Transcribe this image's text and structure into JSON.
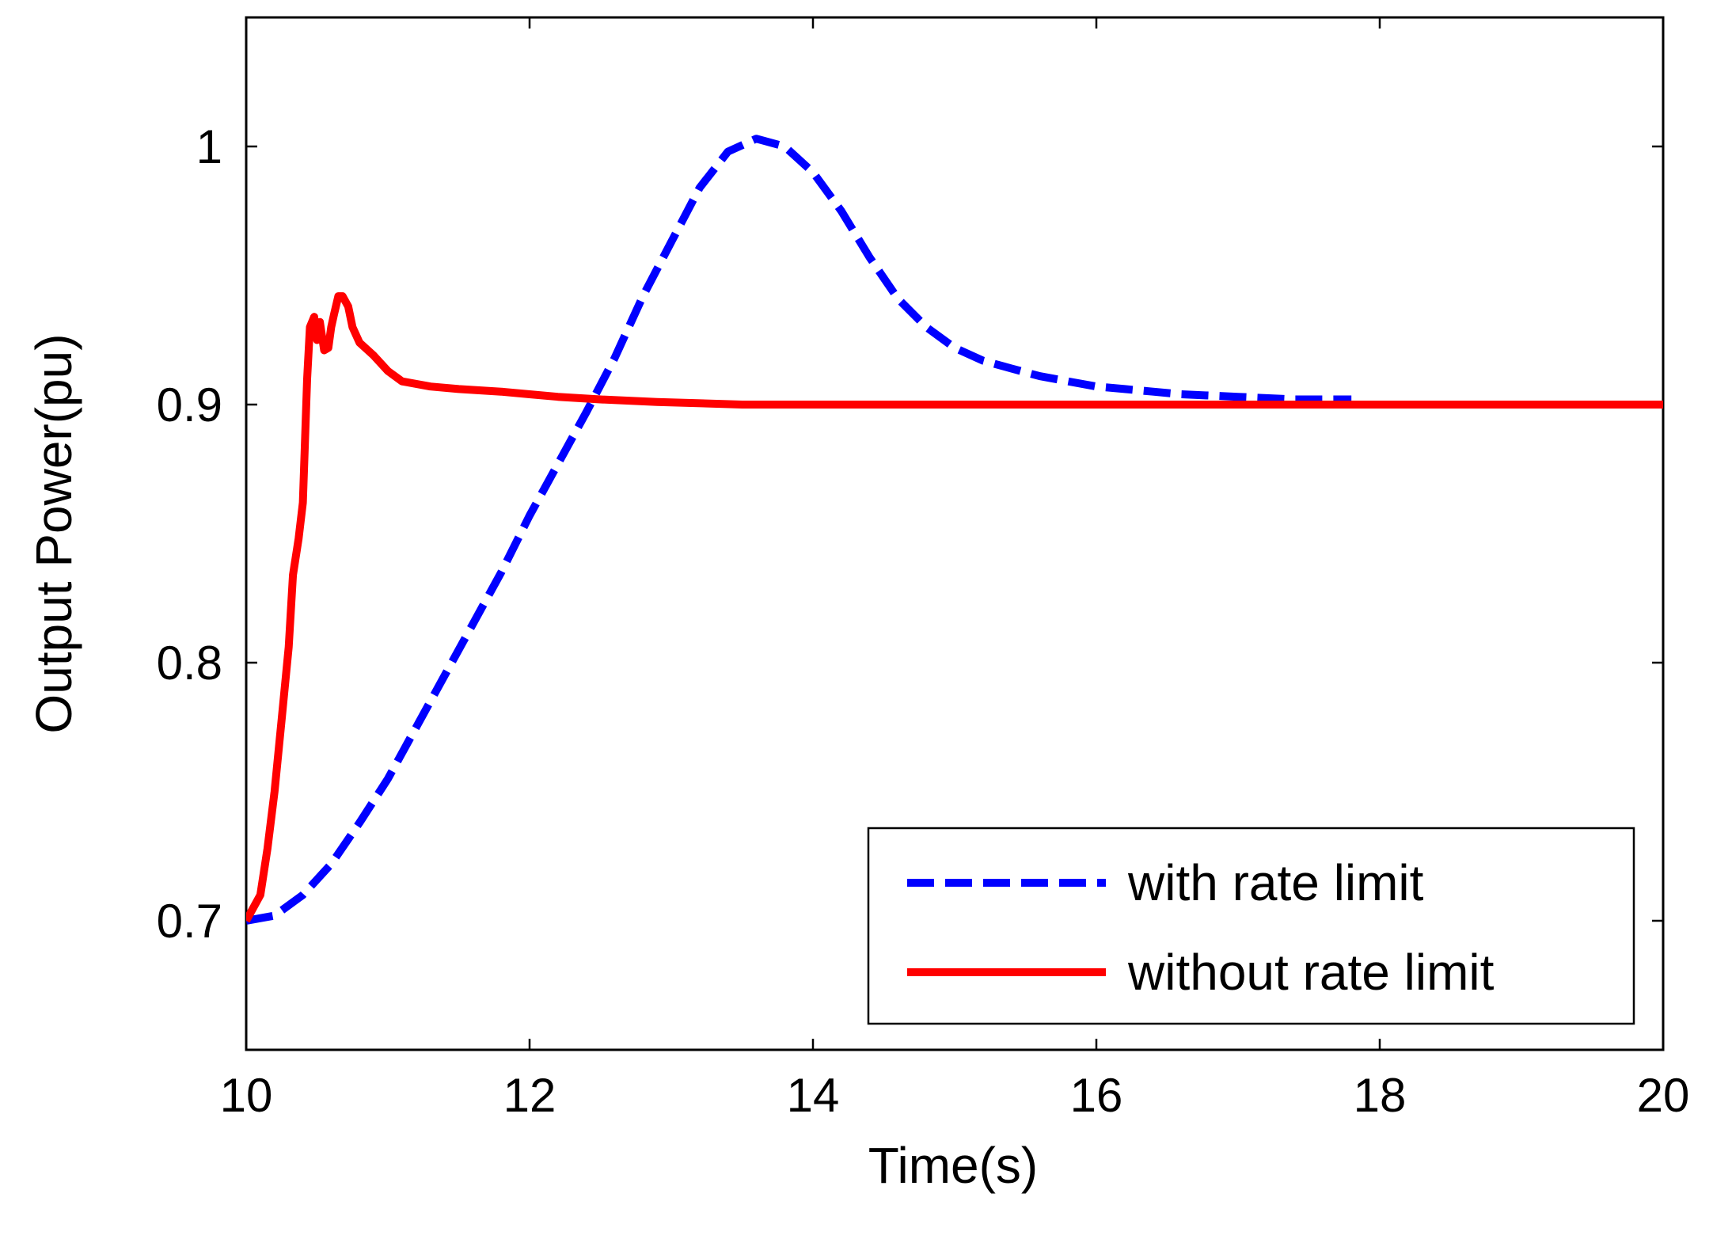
{
  "chart_data": {
    "type": "line",
    "title": "",
    "xlabel": "Time(s)",
    "ylabel": "Output Power(pu)",
    "xlim": [
      10,
      20
    ],
    "ylim": [
      0.65,
      1.05
    ],
    "xticks": [
      10,
      12,
      14,
      16,
      18,
      20
    ],
    "xtick_labels": [
      "10",
      "12",
      "14",
      "16",
      "18",
      "20"
    ],
    "yticks": [
      0.7,
      0.8,
      0.9,
      1.0
    ],
    "ytick_labels": [
      "0.7",
      "0.8",
      "0.9",
      "1"
    ],
    "grid": false,
    "legend_position": "bottom-right",
    "series": [
      {
        "name": "with rate limit",
        "color": "#0000ff",
        "style": "dashed",
        "x": [
          10.0,
          10.2,
          10.4,
          10.6,
          10.8,
          11.0,
          11.2,
          11.4,
          11.6,
          11.8,
          12.0,
          12.2,
          12.4,
          12.6,
          12.8,
          13.0,
          13.2,
          13.4,
          13.6,
          13.8,
          14.0,
          14.2,
          14.4,
          14.6,
          14.8,
          15.0,
          15.2,
          15.4,
          15.6,
          15.8,
          16.0,
          16.2,
          16.4,
          16.6,
          17.0,
          17.4,
          17.8
        ],
        "y": [
          0.7,
          0.702,
          0.71,
          0.722,
          0.738,
          0.755,
          0.775,
          0.795,
          0.815,
          0.835,
          0.857,
          0.877,
          0.897,
          0.918,
          0.942,
          0.963,
          0.984,
          0.998,
          1.003,
          1.0,
          0.99,
          0.975,
          0.957,
          0.941,
          0.93,
          0.922,
          0.917,
          0.914,
          0.911,
          0.909,
          0.907,
          0.906,
          0.905,
          0.904,
          0.903,
          0.902,
          0.902
        ]
      },
      {
        "name": "without rate limit",
        "color": "#ff0000",
        "style": "solid",
        "x": [
          10.0,
          10.1,
          10.15,
          10.2,
          10.25,
          10.3,
          10.33,
          10.37,
          10.4,
          10.43,
          10.45,
          10.48,
          10.5,
          10.52,
          10.55,
          10.58,
          10.6,
          10.62,
          10.65,
          10.68,
          10.72,
          10.75,
          10.8,
          10.9,
          11.0,
          11.1,
          11.3,
          11.5,
          11.8,
          12.0,
          12.2,
          12.5,
          12.9,
          13.5,
          14.5,
          16.0,
          18.0,
          20.0
        ],
        "y": [
          0.7,
          0.71,
          0.728,
          0.75,
          0.778,
          0.806,
          0.834,
          0.848,
          0.862,
          0.91,
          0.93,
          0.934,
          0.925,
          0.932,
          0.921,
          0.922,
          0.93,
          0.935,
          0.942,
          0.942,
          0.938,
          0.93,
          0.924,
          0.919,
          0.913,
          0.909,
          0.907,
          0.906,
          0.905,
          0.904,
          0.903,
          0.902,
          0.901,
          0.9,
          0.9,
          0.9,
          0.9,
          0.9
        ]
      }
    ]
  }
}
